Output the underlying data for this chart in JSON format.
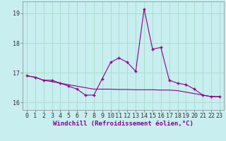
{
  "xlabel": "Windchill (Refroidissement éolien,°C)",
  "background_color": "#c8eef0",
  "grid_color": "#aaddcc",
  "line_color": "#880088",
  "xlim": [
    -0.5,
    23.5
  ],
  "ylim": [
    15.75,
    19.4
  ],
  "yticks": [
    16,
    17,
    18,
    19
  ],
  "xticks": [
    0,
    1,
    2,
    3,
    4,
    5,
    6,
    7,
    8,
    9,
    10,
    11,
    12,
    13,
    14,
    15,
    16,
    17,
    18,
    19,
    20,
    21,
    22,
    23
  ],
  "series1_x": [
    0,
    1,
    2,
    3,
    4,
    5,
    6,
    7,
    8,
    9,
    10,
    11,
    12,
    13,
    14,
    15,
    16,
    17,
    18,
    19,
    20,
    21,
    22,
    23
  ],
  "series1_y": [
    16.9,
    16.85,
    16.75,
    16.75,
    16.65,
    16.55,
    16.45,
    16.25,
    16.25,
    16.8,
    17.35,
    17.5,
    17.35,
    17.05,
    19.15,
    17.8,
    17.85,
    16.75,
    16.65,
    16.6,
    16.45,
    16.25,
    16.2,
    16.2
  ],
  "series2_x": [
    0,
    1,
    2,
    3,
    4,
    5,
    6,
    7,
    8,
    9,
    10,
    11,
    12,
    13,
    14,
    15,
    16,
    17,
    18,
    19,
    20,
    21,
    22,
    23
  ],
  "series2_y": [
    16.9,
    16.85,
    16.75,
    16.7,
    16.65,
    16.6,
    16.55,
    16.5,
    16.45,
    16.45,
    16.45,
    16.44,
    16.44,
    16.43,
    16.43,
    16.43,
    16.42,
    16.42,
    16.4,
    16.35,
    16.3,
    16.25,
    16.2,
    16.2
  ],
  "xlabel_fontsize": 6.5,
  "tick_fontsize": 6.0
}
